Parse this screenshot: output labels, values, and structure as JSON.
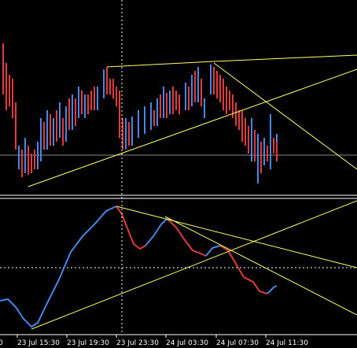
{
  "axis": {
    "labels": [
      "0",
      "23 Jul 15:30",
      "23 Jul 19:30",
      "23 Jul 23:30",
      "24 Jul 03:30",
      "24 Jul 07:30",
      "24 Jul 11:30"
    ]
  }
}
